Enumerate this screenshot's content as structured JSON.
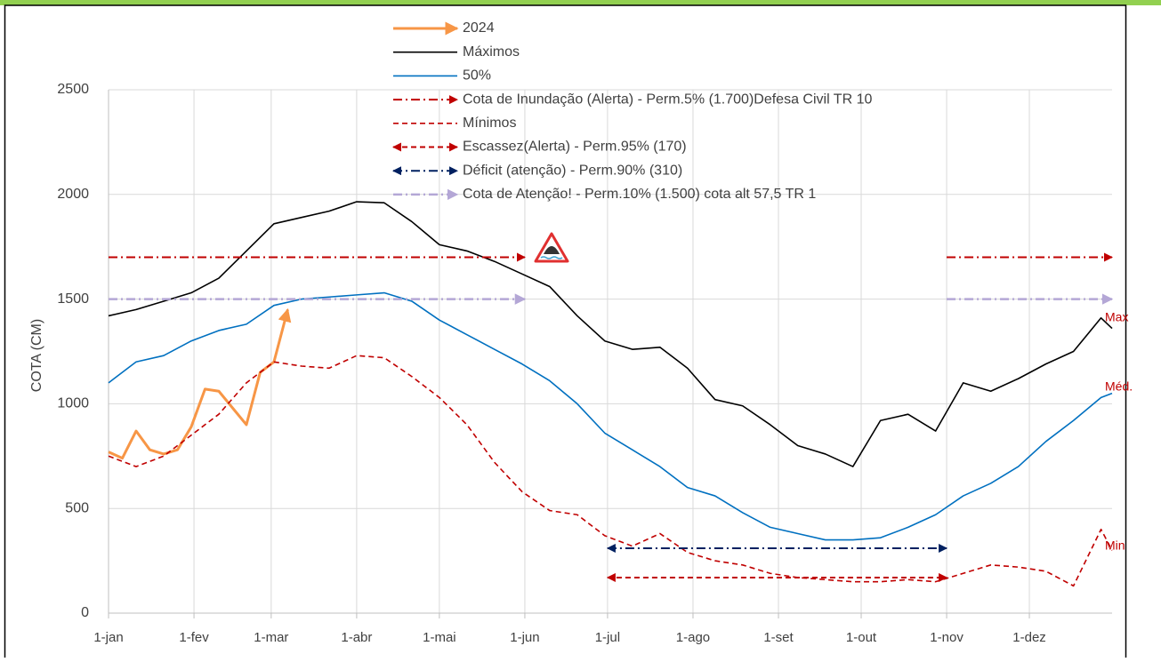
{
  "chart_data": {
    "type": "line",
    "y_label": "COTA (CM)",
    "xlim": [
      1,
      365
    ],
    "xticks": [
      {
        "value": 1,
        "label": "1-jan"
      },
      {
        "value": 32,
        "label": "1-fev"
      },
      {
        "value": 60,
        "label": "1-mar"
      },
      {
        "value": 91,
        "label": "1-abr"
      },
      {
        "value": 121,
        "label": "1-mai"
      },
      {
        "value": 152,
        "label": "1-jun"
      },
      {
        "value": 182,
        "label": "1-jul"
      },
      {
        "value": 213,
        "label": "1-ago"
      },
      {
        "value": 244,
        "label": "1-set"
      },
      {
        "value": 274,
        "label": "1-out"
      },
      {
        "value": 305,
        "label": "1-nov"
      },
      {
        "value": 335,
        "label": "1-dez"
      }
    ],
    "ylim": [
      0,
      2500
    ],
    "yticks": [
      0,
      500,
      1000,
      1500,
      2000,
      2500
    ],
    "grid": true,
    "legend": "top",
    "series": [
      {
        "name": "2024",
        "color": "#f79646",
        "style": "solid",
        "width": 3,
        "arrow": "end",
        "x": [
          1,
          6,
          11,
          16,
          21,
          26,
          31,
          36,
          41,
          46,
          51,
          56,
          61,
          66
        ],
        "values": [
          770,
          740,
          870,
          780,
          760,
          780,
          890,
          1070,
          1060,
          980,
          900,
          1150,
          1200,
          1450
        ]
      },
      {
        "name": "Máximos",
        "color": "#000000",
        "style": "solid",
        "width": 1.6,
        "x": [
          1,
          11,
          21,
          31,
          41,
          51,
          61,
          71,
          81,
          91,
          101,
          111,
          121,
          131,
          141,
          151,
          161,
          171,
          181,
          191,
          201,
          211,
          221,
          231,
          241,
          251,
          261,
          271,
          281,
          291,
          301,
          311,
          321,
          331,
          341,
          351,
          361,
          365
        ],
        "values": [
          1420,
          1450,
          1490,
          1530,
          1600,
          1730,
          1860,
          1890,
          1920,
          1965,
          1960,
          1870,
          1760,
          1730,
          1680,
          1620,
          1560,
          1420,
          1300,
          1260,
          1270,
          1170,
          1020,
          990,
          900,
          800,
          760,
          700,
          920,
          950,
          870,
          1100,
          1060,
          1120,
          1190,
          1250,
          1410,
          1360
        ]
      },
      {
        "name": "50%",
        "color": "#0070c0",
        "style": "solid",
        "width": 1.6,
        "x": [
          1,
          11,
          21,
          31,
          41,
          51,
          61,
          71,
          81,
          91,
          101,
          111,
          121,
          131,
          141,
          151,
          161,
          171,
          181,
          191,
          201,
          211,
          221,
          231,
          241,
          251,
          261,
          271,
          281,
          291,
          301,
          311,
          321,
          331,
          341,
          351,
          361,
          365
        ],
        "values": [
          1100,
          1200,
          1230,
          1300,
          1350,
          1380,
          1470,
          1500,
          1510,
          1520,
          1530,
          1490,
          1400,
          1330,
          1260,
          1190,
          1110,
          1000,
          860,
          780,
          700,
          600,
          560,
          480,
          410,
          380,
          350,
          350,
          360,
          410,
          470,
          560,
          620,
          700,
          820,
          920,
          1030,
          1050
        ]
      },
      {
        "name": "Cota de Inundação (Alerta)  - Perm.5% (1.700)Defesa Civil TR 10",
        "color": "#c00000",
        "style": "dashdot",
        "width": 2,
        "arrow": "end",
        "level": 1700,
        "segments": [
          [
            1,
            152
          ],
          [
            305,
            365
          ]
        ]
      },
      {
        "name": "Mínimos",
        "color": "#c00000",
        "style": "dashed",
        "width": 1.6,
        "x": [
          1,
          11,
          21,
          31,
          41,
          51,
          61,
          71,
          81,
          91,
          101,
          111,
          121,
          131,
          141,
          151,
          161,
          171,
          181,
          191,
          201,
          211,
          221,
          231,
          241,
          251,
          261,
          271,
          281,
          291,
          301,
          311,
          321,
          331,
          341,
          351,
          361,
          365
        ],
        "values": [
          750,
          700,
          750,
          850,
          950,
          1100,
          1200,
          1180,
          1170,
          1230,
          1220,
          1130,
          1030,
          900,
          720,
          580,
          490,
          470,
          370,
          320,
          380,
          290,
          250,
          230,
          190,
          170,
          160,
          150,
          150,
          160,
          150,
          190,
          230,
          220,
          200,
          130,
          400,
          300
        ]
      },
      {
        "name": "Escassez(Alerta) - Perm.95% (170)",
        "color": "#c00000",
        "style": "dashed",
        "width": 2,
        "arrow": "both",
        "level": 170,
        "segments": [
          [
            182,
            305
          ]
        ]
      },
      {
        "name": "Déficit (atenção) - Perm.90% (310)",
        "color": "#002060",
        "style": "dashdot",
        "width": 2,
        "arrow": "both",
        "level": 310,
        "segments": [
          [
            182,
            305
          ]
        ]
      },
      {
        "name": "Cota de Atenção! - Perm.10% (1.500) cota alt 57,5  TR 1",
        "color": "#b4a7d6",
        "style": "dashdot",
        "width": 2.5,
        "arrow": "end",
        "level": 1500,
        "segments": [
          [
            1,
            152
          ],
          [
            305,
            365
          ]
        ]
      }
    ],
    "annotations": [
      {
        "text": "Max",
        "x": 365,
        "y": 1410,
        "color": "#c00000"
      },
      {
        "text": "Méd.",
        "x": 365,
        "y": 1080,
        "color": "#c00000"
      },
      {
        "text": "Min",
        "x": 365,
        "y": 320,
        "color": "#c00000"
      }
    ]
  }
}
